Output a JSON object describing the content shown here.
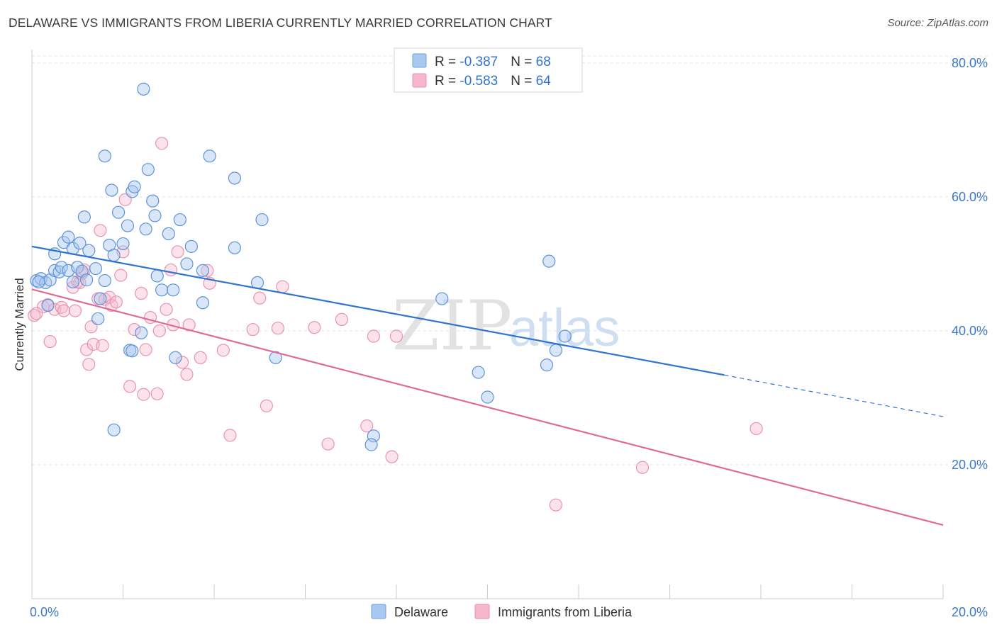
{
  "title": "DELAWARE VS IMMIGRANTS FROM LIBERIA CURRENTLY MARRIED CORRELATION CHART",
  "source": "Source: ZipAtlas.com",
  "watermark": {
    "zip": "ZIP",
    "atlas": "atlas"
  },
  "colors": {
    "blue": "#2f74d0",
    "pink": "#e06a95",
    "blue_fill": "#a9c8f0",
    "pink_fill": "#f6b6cc",
    "axis_text": "#3d78c9"
  },
  "legend": {
    "rows": [
      {
        "r_label": "R = ",
        "r_value": "-0.387",
        "n_label": "N = ",
        "n_value": "68"
      },
      {
        "r_label": "R = ",
        "r_value": "-0.583",
        "n_label": "N = ",
        "n_value": "64"
      }
    ]
  },
  "chart_data": {
    "type": "scatter",
    "title": "DELAWARE VS IMMIGRANTS FROM LIBERIA CURRENTLY MARRIED CORRELATION CHART",
    "xlabel": "",
    "ylabel": "Currently Married",
    "xlim": [
      0,
      20
    ],
    "ylim": [
      0,
      82
    ],
    "x_ticks": [
      0,
      2,
      4,
      6,
      8,
      10,
      12,
      14,
      16,
      18,
      20
    ],
    "x_tick_labels": {
      "0": "0.0%",
      "20": "20.0%"
    },
    "y_ticks": [
      20,
      40,
      60,
      80
    ],
    "y_tick_labels": [
      "20.0%",
      "40.0%",
      "60.0%",
      "80.0%"
    ],
    "grid": true,
    "series": [
      {
        "name": "Delaware",
        "r": -0.387,
        "n": 68,
        "trend": {
          "x0": 0,
          "y0": 52.6,
          "x1": 15.2,
          "y1": 33.4,
          "dash_to": 20,
          "dash_y": 27.2
        },
        "points": [
          [
            0.1,
            47.5
          ],
          [
            0.2,
            47.8
          ],
          [
            0.3,
            47.2
          ],
          [
            0.35,
            43.8
          ],
          [
            0.4,
            47.6
          ],
          [
            0.5,
            49.0
          ],
          [
            0.5,
            51.5
          ],
          [
            0.6,
            48.8
          ],
          [
            0.65,
            49.5
          ],
          [
            0.7,
            53.2
          ],
          [
            0.8,
            49.0
          ],
          [
            0.8,
            54.0
          ],
          [
            0.9,
            52.3
          ],
          [
            0.9,
            47.3
          ],
          [
            1.0,
            49.5
          ],
          [
            1.05,
            53.1
          ],
          [
            1.1,
            48.9
          ],
          [
            1.15,
            57.0
          ],
          [
            1.2,
            47.6
          ],
          [
            1.25,
            52.0
          ],
          [
            1.4,
            49.3
          ],
          [
            1.45,
            41.8
          ],
          [
            1.5,
            44.8
          ],
          [
            1.6,
            66.1
          ],
          [
            1.6,
            47.5
          ],
          [
            1.7,
            52.8
          ],
          [
            1.75,
            61.0
          ],
          [
            1.8,
            51.3
          ],
          [
            1.8,
            25.2
          ],
          [
            1.9,
            57.7
          ],
          [
            2.0,
            53.0
          ],
          [
            2.1,
            55.7
          ],
          [
            2.15,
            37.1
          ],
          [
            2.2,
            37.0
          ],
          [
            2.2,
            60.8
          ],
          [
            2.25,
            61.5
          ],
          [
            2.4,
            39.7
          ],
          [
            2.45,
            76.1
          ],
          [
            2.5,
            55.2
          ],
          [
            2.55,
            64.1
          ],
          [
            2.65,
            59.4
          ],
          [
            2.7,
            57.2
          ],
          [
            2.75,
            48.2
          ],
          [
            2.85,
            46.1
          ],
          [
            3.0,
            54.5
          ],
          [
            3.1,
            46.1
          ],
          [
            3.15,
            36.0
          ],
          [
            3.25,
            56.6
          ],
          [
            3.4,
            50.0
          ],
          [
            3.5,
            52.6
          ],
          [
            3.75,
            49.0
          ],
          [
            3.75,
            44.2
          ],
          [
            3.9,
            66.1
          ],
          [
            4.45,
            62.8
          ],
          [
            4.45,
            52.4
          ],
          [
            4.95,
            47.2
          ],
          [
            5.05,
            56.6
          ],
          [
            5.35,
            36.0
          ],
          [
            7.5,
            24.3
          ],
          [
            7.45,
            23.0
          ],
          [
            9.0,
            44.8
          ],
          [
            9.8,
            33.8
          ],
          [
            10.0,
            30.1
          ],
          [
            11.3,
            34.9
          ],
          [
            11.35,
            50.4
          ],
          [
            11.5,
            37.1
          ],
          [
            11.7,
            39.2
          ],
          [
            0.15,
            47.3
          ]
        ]
      },
      {
        "name": "Immigrants from Liberia",
        "r": -0.583,
        "n": 64,
        "trend": {
          "x0": 0,
          "y0": 46.2,
          "x1": 20,
          "y1": 11.0
        },
        "points": [
          [
            0.05,
            42.3
          ],
          [
            0.25,
            43.6
          ],
          [
            0.35,
            43.9
          ],
          [
            0.4,
            38.4
          ],
          [
            0.5,
            43.2
          ],
          [
            0.65,
            43.5
          ],
          [
            0.7,
            43.0
          ],
          [
            0.9,
            46.5
          ],
          [
            0.95,
            43.0
          ],
          [
            1.0,
            47.3
          ],
          [
            1.1,
            48.6
          ],
          [
            1.15,
            49.1
          ],
          [
            1.2,
            37.2
          ],
          [
            1.25,
            35.0
          ],
          [
            1.3,
            40.6
          ],
          [
            1.35,
            38.0
          ],
          [
            1.45,
            44.8
          ],
          [
            1.5,
            55.0
          ],
          [
            1.55,
            37.8
          ],
          [
            1.6,
            44.7
          ],
          [
            1.7,
            45.0
          ],
          [
            1.75,
            43.8
          ],
          [
            1.85,
            44.3
          ],
          [
            1.95,
            48.3
          ],
          [
            2.0,
            51.8
          ],
          [
            2.05,
            59.6
          ],
          [
            2.15,
            31.7
          ],
          [
            2.25,
            40.2
          ],
          [
            2.4,
            45.6
          ],
          [
            2.45,
            30.5
          ],
          [
            2.5,
            37.2
          ],
          [
            2.6,
            42.0
          ],
          [
            2.75,
            30.6
          ],
          [
            2.8,
            40.0
          ],
          [
            2.85,
            68.0
          ],
          [
            2.95,
            43.2
          ],
          [
            3.05,
            49.1
          ],
          [
            3.1,
            40.9
          ],
          [
            3.2,
            51.8
          ],
          [
            3.3,
            35.3
          ],
          [
            3.4,
            33.5
          ],
          [
            3.45,
            40.9
          ],
          [
            3.7,
            36.0
          ],
          [
            3.85,
            49.0
          ],
          [
            3.9,
            47.1
          ],
          [
            4.2,
            37.1
          ],
          [
            4.35,
            24.4
          ],
          [
            4.85,
            40.2
          ],
          [
            5.0,
            44.9
          ],
          [
            5.15,
            28.8
          ],
          [
            5.4,
            40.4
          ],
          [
            5.5,
            46.6
          ],
          [
            6.2,
            40.5
          ],
          [
            6.5,
            23.1
          ],
          [
            6.8,
            41.7
          ],
          [
            7.35,
            25.8
          ],
          [
            7.5,
            39.2
          ],
          [
            7.9,
            21.2
          ],
          [
            8.0,
            39.2
          ],
          [
            11.5,
            14.0
          ],
          [
            13.4,
            19.6
          ],
          [
            15.9,
            25.4
          ],
          [
            0.1,
            42.6
          ],
          [
            1.05,
            47.2
          ]
        ]
      }
    ],
    "legend_placement": "top-center and bottom"
  }
}
